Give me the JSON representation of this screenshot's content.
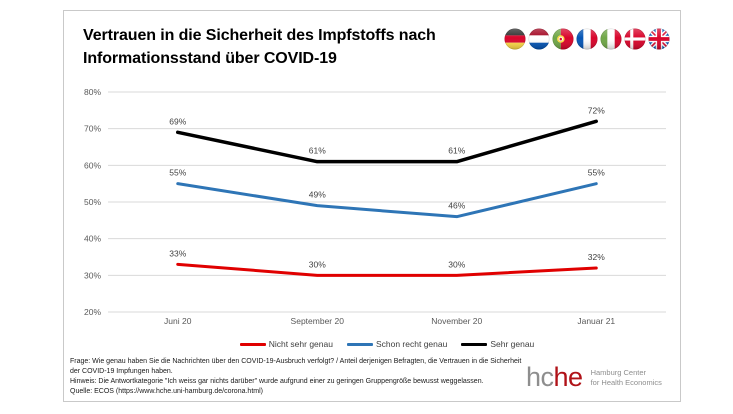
{
  "window": {
    "background": "#ffffff",
    "card_border": "#c9c9c9"
  },
  "header": {
    "title_line1": "Vertrauen in die Sicherheit des Impfstoffs nach",
    "title_line2": "Informationsstand über COVID-19",
    "flags": [
      "germany",
      "netherlands",
      "portugal",
      "france",
      "italy",
      "denmark",
      "united-kingdom"
    ]
  },
  "chart_data": {
    "type": "line",
    "categories": [
      "Juni 20",
      "September 20",
      "November 20",
      "Januar 21"
    ],
    "series": [
      {
        "name": "Nicht sehr genau",
        "color": "#e00000",
        "stroke_width": 3,
        "values": [
          33,
          30,
          30,
          32
        ]
      },
      {
        "name": "Schon recht genau",
        "color": "#2e75b6",
        "stroke_width": 3,
        "values": [
          55,
          49,
          46,
          55
        ]
      },
      {
        "name": "Sehr genau",
        "color": "#000000",
        "stroke_width": 3.5,
        "values": [
          69,
          61,
          61,
          72
        ]
      }
    ],
    "ylim": [
      20,
      80
    ],
    "ytick_step": 10,
    "ytick_suffix": "%",
    "value_suffix": "%",
    "grid": true,
    "grid_color": "#d9d9d9",
    "legend_position": "bottom",
    "title": "Vertrauen in die Sicherheit des Impfstoffs nach Informationsstand über COVID-19",
    "xlabel": "",
    "ylabel": ""
  },
  "footnotes": {
    "frage": "Frage: Wie genau haben Sie die Nachrichten über den COVID-19-Ausbruch verfolgt? / Anteil derjenigen Befragten, die Vertrauen in die Sicherheit der COVID-19 Impfungen haben.",
    "hinweis": "Hinweis: Die Antwortkategorie \"Ich weiss gar nichts darüber\" wurde aufgrund einer zu geringen Gruppengröße bewusst weggelassen.",
    "quelle": "Quelle: ECOS (https://www.hche.uni-hamburg.de/corona.html)"
  },
  "logo": {
    "gray_text": "hc",
    "red_text": "he",
    "gray_color": "#8e8e8e",
    "red_color": "#b01218",
    "sub_line1": "Hamburg Center",
    "sub_line2": "for Health Economics"
  }
}
